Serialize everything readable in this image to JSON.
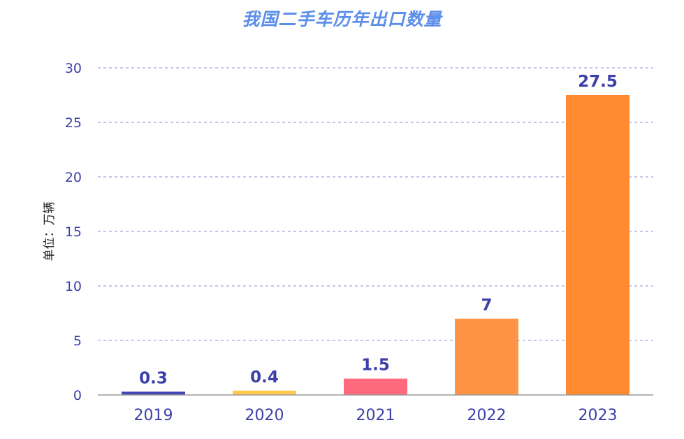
{
  "chart_data": {
    "type": "bar",
    "title": "我国二手车历年出口数量",
    "ylabel": "单位：万辆",
    "xlabel": "",
    "categories": [
      "2019",
      "2020",
      "2021",
      "2022",
      "2023"
    ],
    "values": [
      0.3,
      0.4,
      1.5,
      7,
      27.5
    ],
    "value_labels": [
      "0.3",
      "0.4",
      "1.5",
      "7",
      "27.5"
    ],
    "yticks": [
      "0",
      "5",
      "10",
      "15",
      "20",
      "25",
      "30"
    ],
    "ylim": [
      0,
      30
    ],
    "grid": true,
    "legend": "none"
  },
  "colors": {
    "title": "#5b8ee8",
    "axis_text": "#3b3fa8",
    "value_label": "#3b3fa8",
    "gridline": "#8a8fd6",
    "bars": [
      "#4146b0",
      "#ffc94d",
      "#ff6b7e",
      "#ff9447",
      "#ff8a30"
    ]
  }
}
